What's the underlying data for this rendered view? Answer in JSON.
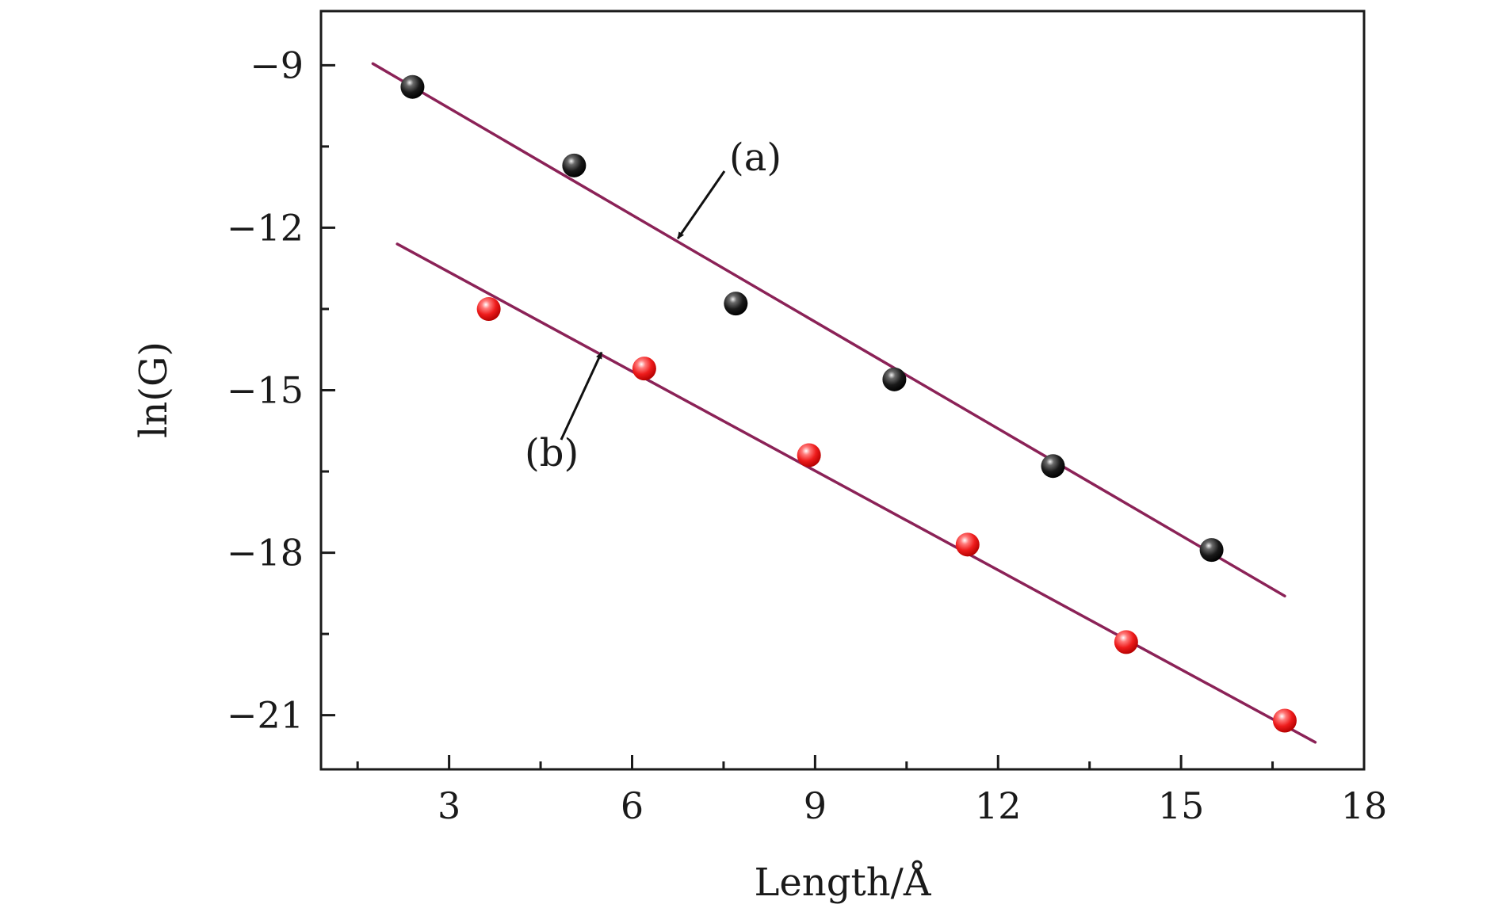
{
  "chart_data": {
    "type": "scatter",
    "xlabel": "Length/Å",
    "ylabel": "ln(G)",
    "xlim": [
      0.9,
      18
    ],
    "ylim": [
      -22,
      -8
    ],
    "x_ticks": [
      3,
      6,
      9,
      12,
      15,
      18
    ],
    "x_tick_labels": [
      "3",
      "6",
      "9",
      "12",
      "15",
      "18"
    ],
    "y_ticks": [
      -9,
      -12,
      -15,
      -18,
      -21
    ],
    "y_tick_labels": [
      "−9",
      "−12",
      "−15",
      "−18",
      "−21"
    ],
    "grid": false,
    "legend": "none",
    "series": [
      {
        "label": "(a)",
        "marker_color": "#111111",
        "line_color": "#8b2257",
        "x": [
          2.4,
          5.05,
          7.7,
          10.3,
          12.9,
          15.5
        ],
        "y": [
          -9.4,
          -10.85,
          -13.4,
          -14.8,
          -16.4,
          -17.95
        ],
        "fit": {
          "x": [
            1.75,
            16.7
          ],
          "y": [
            -8.97,
            -18.8
          ]
        }
      },
      {
        "label": "(b)",
        "marker_color": "#ee1c1c",
        "line_color": "#8b2257",
        "x": [
          3.65,
          6.2,
          8.9,
          11.5,
          14.1,
          16.7
        ],
        "y": [
          -13.5,
          -14.6,
          -16.2,
          -17.85,
          -19.65,
          -21.1
        ],
        "fit": {
          "x": [
            2.15,
            17.2
          ],
          "y": [
            -12.3,
            -21.5
          ]
        }
      }
    ],
    "annotations": [
      {
        "text": "(a)",
        "arrow_to": {
          "x": 6.75,
          "y": -12.2
        }
      },
      {
        "text": "(b)",
        "arrow_to": {
          "x": 5.5,
          "y": -14.3
        }
      }
    ]
  }
}
